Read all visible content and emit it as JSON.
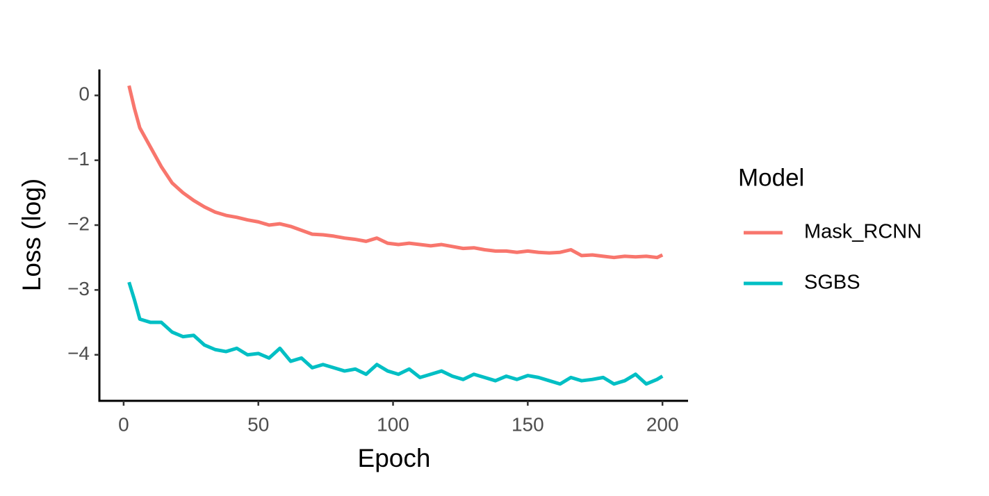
{
  "chart_data": {
    "type": "line",
    "x_label": "Epoch",
    "y_label": "Loss (log)",
    "legend_title": "Model",
    "legend": "right",
    "x": [
      2,
      4,
      6,
      10,
      14,
      18,
      22,
      26,
      30,
      34,
      38,
      42,
      46,
      50,
      54,
      58,
      62,
      66,
      70,
      74,
      78,
      82,
      86,
      90,
      94,
      98,
      102,
      106,
      110,
      114,
      118,
      122,
      126,
      130,
      134,
      138,
      142,
      146,
      150,
      154,
      158,
      162,
      166,
      170,
      174,
      178,
      182,
      186,
      190,
      194,
      198,
      200
    ],
    "series": [
      {
        "name": "Mask_RCNN",
        "color": "#f8766d",
        "values": [
          0.15,
          -0.2,
          -0.5,
          -0.8,
          -1.1,
          -1.35,
          -1.5,
          -1.62,
          -1.72,
          -1.8,
          -1.85,
          -1.88,
          -1.92,
          -1.95,
          -2.0,
          -1.98,
          -2.02,
          -2.08,
          -2.14,
          -2.15,
          -2.17,
          -2.2,
          -2.22,
          -2.25,
          -2.2,
          -2.28,
          -2.3,
          -2.28,
          -2.3,
          -2.32,
          -2.3,
          -2.33,
          -2.36,
          -2.35,
          -2.38,
          -2.4,
          -2.4,
          -2.42,
          -2.4,
          -2.42,
          -2.43,
          -2.42,
          -2.38,
          -2.47,
          -2.46,
          -2.48,
          -2.5,
          -2.48,
          -2.49,
          -2.48,
          -2.5,
          -2.46
        ]
      },
      {
        "name": "SGBS",
        "color": "#00bfc4",
        "values": [
          -2.88,
          -3.15,
          -3.45,
          -3.5,
          -3.5,
          -3.65,
          -3.72,
          -3.7,
          -3.85,
          -3.92,
          -3.95,
          -3.9,
          -4.0,
          -3.98,
          -4.05,
          -3.9,
          -4.1,
          -4.05,
          -4.2,
          -4.15,
          -4.2,
          -4.25,
          -4.22,
          -4.3,
          -4.15,
          -4.25,
          -4.3,
          -4.22,
          -4.35,
          -4.3,
          -4.25,
          -4.33,
          -4.38,
          -4.3,
          -4.35,
          -4.4,
          -4.33,
          -4.38,
          -4.32,
          -4.35,
          -4.4,
          -4.45,
          -4.35,
          -4.4,
          -4.38,
          -4.35,
          -4.45,
          -4.4,
          -4.3,
          -4.45,
          -4.38,
          -4.33
        ]
      }
    ],
    "xlim": [
      -9,
      209.5
    ],
    "xticks": [
      0,
      50,
      100,
      150,
      200
    ],
    "ylim": [
      -4.71,
      0.4
    ],
    "yticks": [
      0,
      {
        "value": -1,
        "label": "−1"
      },
      {
        "value": -2,
        "label": "−2"
      },
      {
        "value": -3,
        "label": "−3"
      },
      {
        "value": -4,
        "label": "−4"
      }
    ],
    "grid": false
  }
}
